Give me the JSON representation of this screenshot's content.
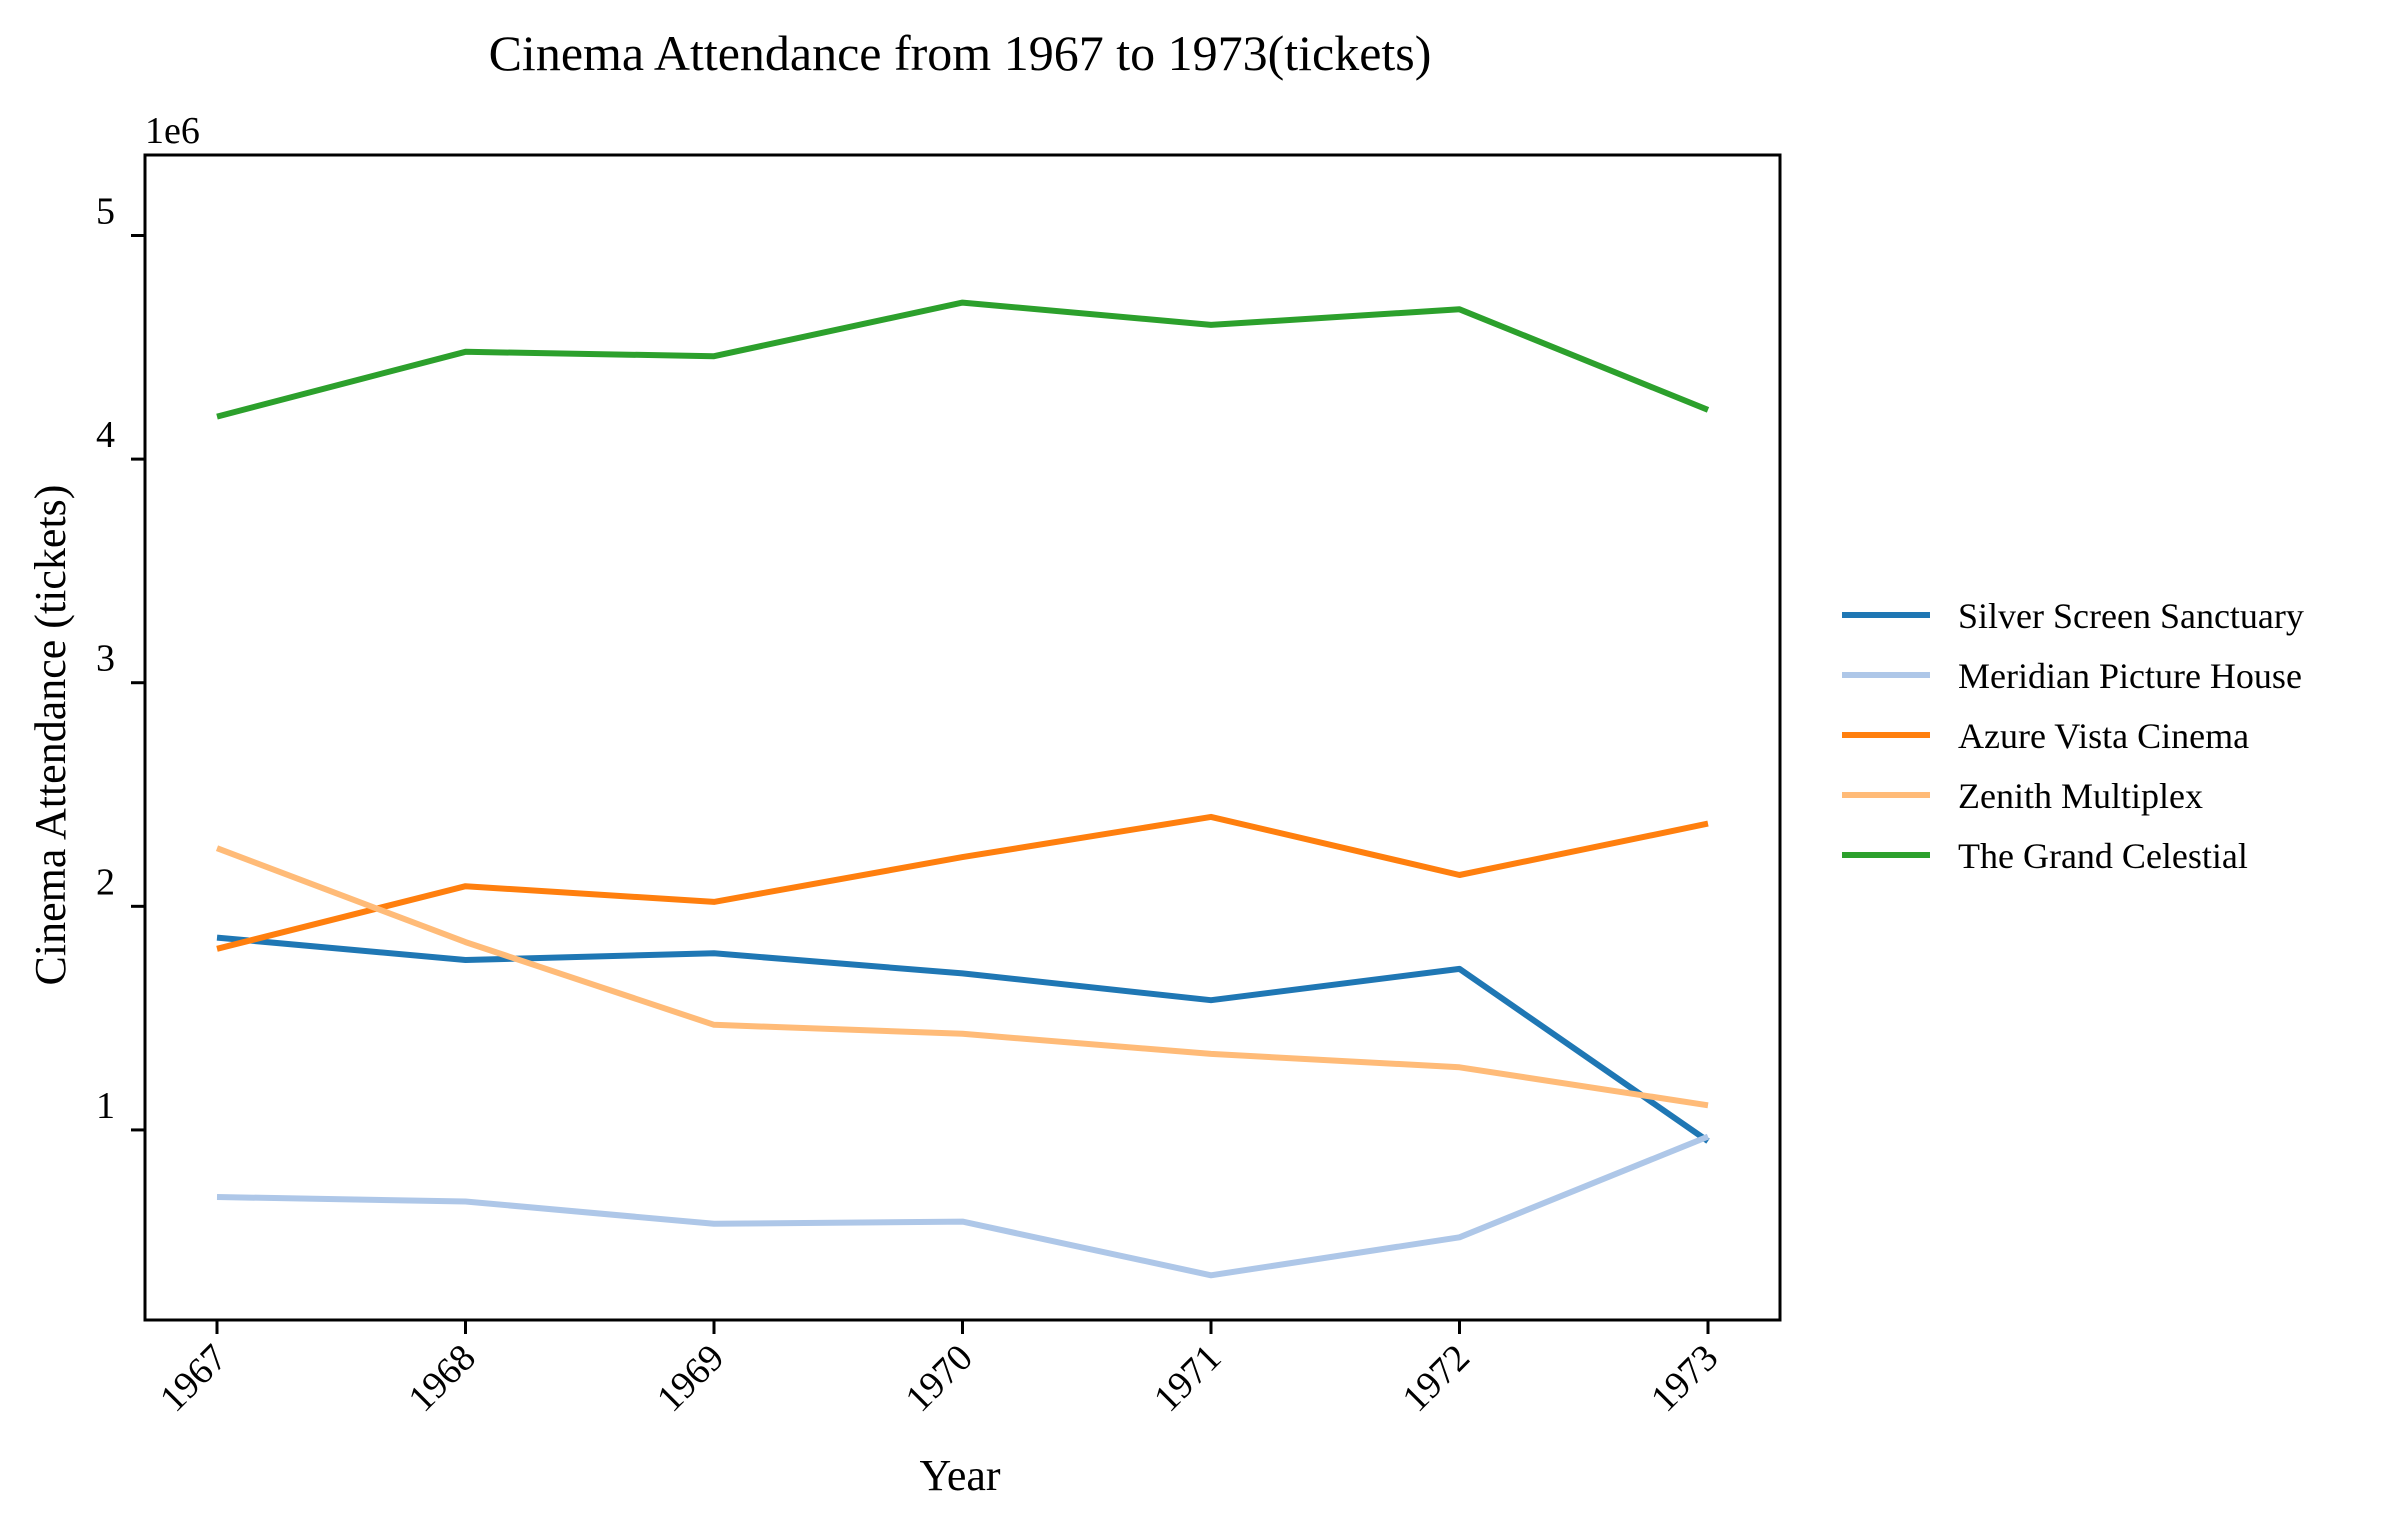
{
  "chart_data": {
    "type": "line",
    "title": "Cinema Attendance from 1967 to 1973(tickets)",
    "xlabel": "Year",
    "ylabel": "Cinema Attendance (tickets)",
    "y_offset_label": "1e6",
    "x": [
      "1967",
      "1968",
      "1969",
      "1970",
      "1971",
      "1972",
      "1973"
    ],
    "ylim": [
      0.15,
      5.36
    ],
    "yticks": [
      1,
      2,
      3,
      4,
      5
    ],
    "ytick_labels": [
      "1",
      "2",
      "3",
      "4",
      "5"
    ],
    "grid": false,
    "legend_position": "center-right",
    "series": [
      {
        "name": "Silver Screen Sanctuary",
        "color": "#1f77b4",
        "values": [
          1.86,
          1.76,
          1.79,
          1.7,
          1.58,
          1.72,
          0.95
        ]
      },
      {
        "name": "Meridian Picture House",
        "color": "#aec7e8",
        "values": [
          0.7,
          0.68,
          0.58,
          0.59,
          0.35,
          0.52,
          0.97
        ]
      },
      {
        "name": "Azure Vista Cinema",
        "color": "#ff7f0e",
        "values": [
          1.81,
          2.09,
          2.02,
          2.22,
          2.4,
          2.14,
          2.37
        ]
      },
      {
        "name": "Zenith Multiplex",
        "color": "#ffbb78",
        "values": [
          2.26,
          1.84,
          1.47,
          1.43,
          1.34,
          1.28,
          1.11
        ]
      },
      {
        "name": "The Grand Celestial",
        "color": "#2ca02c",
        "values": [
          4.19,
          4.48,
          4.46,
          4.7,
          4.6,
          4.67,
          4.22
        ]
      }
    ]
  }
}
